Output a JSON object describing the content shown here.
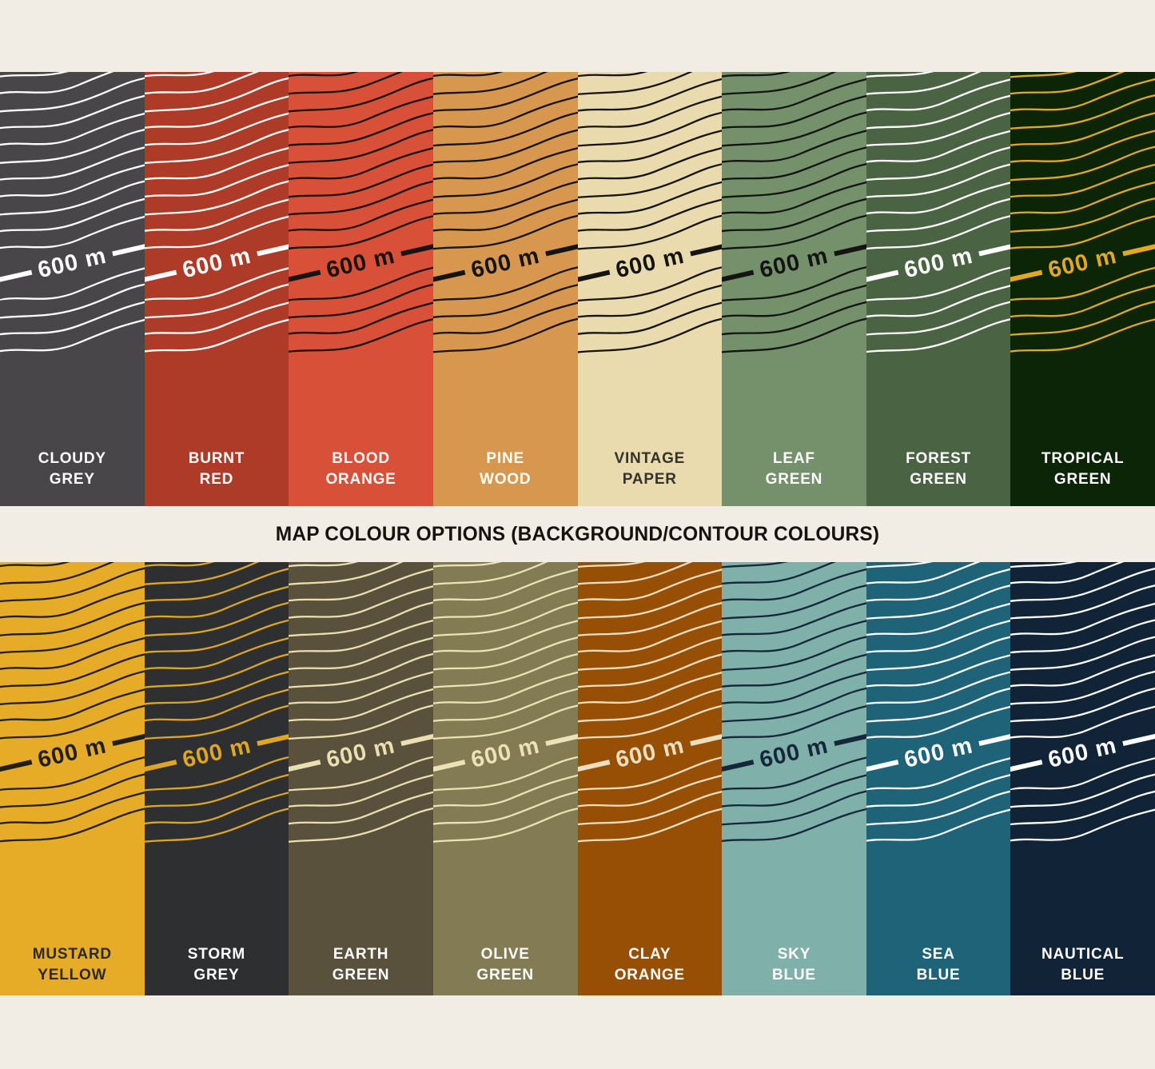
{
  "page": {
    "background": "#f1ede4"
  },
  "title": "MAP COLOUR OPTIONS (BACKGROUND/CONTOUR COLOURS)",
  "elevation_label": "600 m",
  "rows": [
    {
      "name": "top",
      "swatches": [
        {
          "name": "CLOUDY GREY",
          "label": "CLOUDY\nGREY",
          "background": "#484649",
          "contour": "#ffffff",
          "label_color": "#ffffff"
        },
        {
          "name": "BURNT RED",
          "label": "BURNT\nRED",
          "background": "#ad3b28",
          "contour": "#ffffff",
          "label_color": "#ffffff"
        },
        {
          "name": "BLOOD ORANGE",
          "label": "BLOOD\nORANGE",
          "background": "#d75037",
          "contour": "#141413",
          "label_color": "#ffffff"
        },
        {
          "name": "PINE WOOD",
          "label": "PINE\nWOOD",
          "background": "#d8974f",
          "contour": "#141413",
          "label_color": "#ffffff"
        },
        {
          "name": "VINTAGE PAPER",
          "label": "VINTAGE\nPAPER",
          "background": "#e9dbae",
          "contour": "#141413",
          "label_color": "#34322c"
        },
        {
          "name": "LEAF GREEN",
          "label": "LEAF\nGREEN",
          "background": "#74916b",
          "contour": "#141413",
          "label_color": "#ffffff"
        },
        {
          "name": "FOREST GREEN",
          "label": "FOREST\nGREEN",
          "background": "#4a6443",
          "contour": "#ffffff",
          "label_color": "#ffffff"
        },
        {
          "name": "TROPICAL GREEN",
          "label": "TROPICAL\nGREEN",
          "background": "#0d2507",
          "contour": "#e2a81f",
          "label_color": "#ffffff"
        }
      ]
    },
    {
      "name": "bottom",
      "swatches": [
        {
          "name": "MUSTARD YELLOW",
          "label": "MUSTARD\nYELLOW",
          "background": "#e6ac27",
          "contour": "#211f1a",
          "label_color": "#2c2920"
        },
        {
          "name": "STORM GREY",
          "label": "STORM\nGREY",
          "background": "#2e2f31",
          "contour": "#dfa622",
          "label_color": "#ffffff"
        },
        {
          "name": "EARTH GREEN",
          "label": "EARTH\nGREEN",
          "background": "#59513b",
          "contour": "#e9dfb0",
          "label_color": "#ffffff"
        },
        {
          "name": "OLIVE GREEN",
          "label": "OLIVE\nGREEN",
          "background": "#837b54",
          "contour": "#ece2b8",
          "label_color": "#ffffff"
        },
        {
          "name": "CLAY ORANGE",
          "label": "CLAY\nORANGE",
          "background": "#964f04",
          "contour": "#ecdfc0",
          "label_color": "#ffffff"
        },
        {
          "name": "SKY BLUE",
          "label": "SKY\nBLUE",
          "background": "#7fb0aa",
          "contour": "#15273a",
          "label_color": "#ffffff"
        },
        {
          "name": "SEA BLUE",
          "label": "SEA\nBLUE",
          "background": "#1e6378",
          "contour": "#ffffff",
          "label_color": "#ffffff"
        },
        {
          "name": "NAUTICAL BLUE",
          "label": "NAUTICAL\nBLUE",
          "background": "#112336",
          "contour": "#ffffff",
          "label_color": "#ffffff"
        }
      ]
    }
  ]
}
